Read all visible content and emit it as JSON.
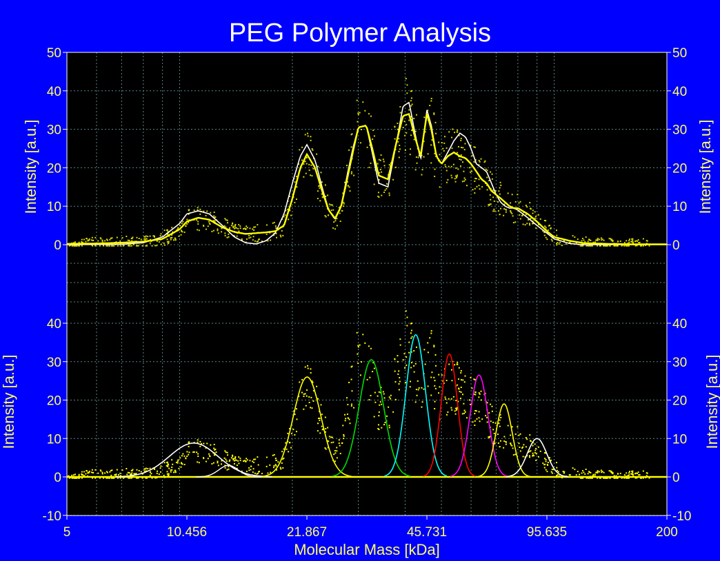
{
  "chart_data": [
    {
      "id": "top",
      "type": "line",
      "title": "PEG Polymer Analysis",
      "xlabel": "Molecular Mass [kDa]",
      "ylabel": "Intensity [a.u.]",
      "xscale": "log",
      "xlim": [
        5,
        200
      ],
      "ylim": [
        0,
        50
      ],
      "yticks": [
        0,
        10,
        20,
        30,
        40,
        50
      ],
      "grid": true,
      "legend": "none",
      "colors": {
        "background": "#000000",
        "frame": "#0000ff",
        "smooth": "#ffff00",
        "fit": "#ffffff",
        "grid": "#5a8a8a"
      },
      "series": [
        {
          "style": "yellow-smoothed",
          "x": [
            5,
            6,
            7,
            8,
            9,
            10,
            10.456,
            11.2,
            12,
            13,
            14,
            15,
            16,
            17,
            18,
            19,
            20,
            21,
            21.867,
            23,
            24,
            25,
            26,
            27,
            28,
            29,
            30,
            31.5,
            32.5,
            34,
            36,
            38,
            39.5,
            41,
            42.5,
            44,
            45.731,
            47,
            48.5,
            50,
            52,
            54,
            56,
            58,
            60,
            62,
            64,
            66,
            68,
            70,
            72,
            74,
            76,
            78,
            80,
            85,
            90,
            95.635,
            100,
            110,
            120,
            140,
            160,
            200
          ],
          "y": [
            0.2,
            0.3,
            0.5,
            0.8,
            1.5,
            4,
            6,
            7,
            6.5,
            4.5,
            3.3,
            2.8,
            3,
            3.2,
            3.5,
            5,
            12,
            20,
            23.5,
            20,
            14,
            9,
            6.8,
            10,
            17,
            24,
            30.5,
            31,
            26,
            18,
            17,
            27,
            33.5,
            34,
            28,
            23,
            34,
            30,
            23,
            21,
            23,
            24,
            23,
            22.5,
            21,
            19,
            17,
            16,
            14,
            13,
            12,
            11,
            10,
            9.5,
            9.5,
            8,
            6,
            3.5,
            2,
            1,
            0.4,
            0.2,
            0.1,
            0.1
          ]
        },
        {
          "style": "white-fit",
          "x": [
            5,
            7,
            8,
            9,
            10,
            10.456,
            11.2,
            12,
            13,
            14,
            15,
            16,
            17,
            18,
            19,
            20,
            21,
            21.867,
            23,
            24,
            25,
            26,
            27,
            28,
            29,
            30,
            31.5,
            32.5,
            34,
            36,
            38,
            39.5,
            41,
            42.5,
            44,
            45.731,
            47,
            48.5,
            50,
            52,
            54,
            56,
            58,
            60,
            62,
            64,
            66,
            68,
            70,
            72,
            74,
            76,
            78,
            80,
            85,
            90,
            95.635,
            100,
            110,
            120,
            200
          ],
          "y": [
            0,
            0.1,
            0.5,
            2,
            5.5,
            8,
            8.8,
            8,
            5,
            2,
            0.5,
            0.2,
            1,
            3,
            8,
            16,
            23,
            26,
            22,
            15,
            9,
            6.5,
            10,
            18,
            25,
            30.5,
            31,
            25,
            16,
            15,
            27,
            36,
            37,
            29,
            22,
            35,
            31,
            23,
            21,
            24,
            27,
            29,
            28,
            25,
            21,
            20,
            19,
            16,
            13,
            11,
            10,
            9.5,
            9.5,
            9,
            7,
            5,
            3,
            1.5,
            0.3,
            0,
            0
          ]
        }
      ]
    },
    {
      "id": "bottom",
      "type": "line",
      "xlabel": "Molecular Mass [kDa]",
      "ylabel": "Intensity [a.u.]",
      "xscale": "log",
      "xlim": [
        5,
        200
      ],
      "ylim": [
        -10,
        50
      ],
      "yticks": [
        -10,
        0,
        10,
        20,
        30,
        40
      ],
      "xticks": [
        "5",
        "10.456",
        "21.867",
        "45.731",
        "95.635",
        "200"
      ],
      "grid": true,
      "legend": "none",
      "gaussians": [
        {
          "color": "#ffffff",
          "center": 10.9,
          "amplitude": 8.8,
          "width": 0.15
        },
        {
          "color": "#ffff00",
          "center": 21.9,
          "amplitude": 26,
          "width": 0.085
        },
        {
          "color": "#00dd00",
          "center": 32.5,
          "amplitude": 30.5,
          "width": 0.075
        },
        {
          "color": "#00ffff",
          "center": 42.7,
          "amplitude": 37,
          "width": 0.06
        },
        {
          "color": "#ff0000",
          "center": 52.5,
          "amplitude": 32,
          "width": 0.05
        },
        {
          "color": "#ff00ff",
          "center": 63,
          "amplitude": 26.5,
          "width": 0.055
        },
        {
          "color": "#ffff00",
          "center": 73.5,
          "amplitude": 19,
          "width": 0.05
        },
        {
          "color": "#ffffff",
          "center": 90,
          "amplitude": 10,
          "width": 0.06
        }
      ],
      "baseline_color": "#ffff00",
      "lowbump": {
        "color": "#ffffff",
        "center": 13.5,
        "amplitude": 3
      }
    }
  ]
}
